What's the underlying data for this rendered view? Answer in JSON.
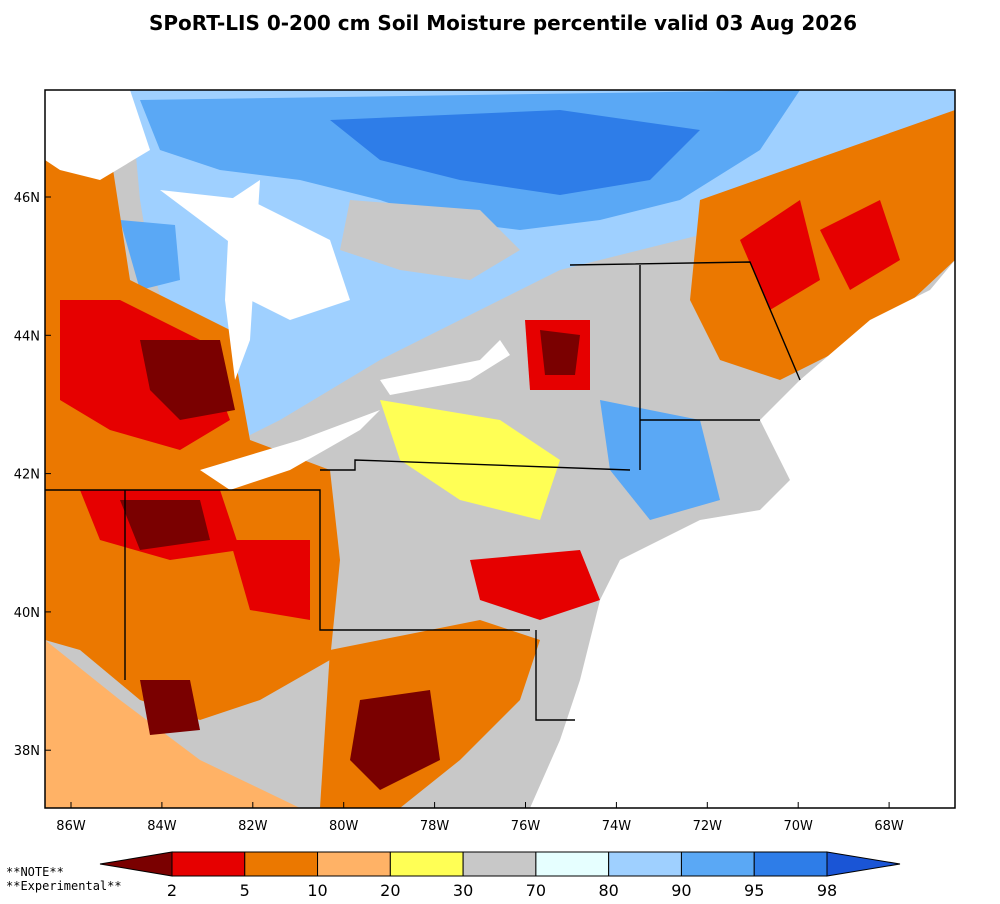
{
  "title": "SPoRT-LIS 0-200 cm Soil Moisture percentile valid 03 Aug 2026",
  "map": {
    "lat_labels": [
      "46N",
      "44N",
      "42N",
      "40N",
      "38N"
    ],
    "lon_labels": [
      "86W",
      "84W",
      "82W",
      "80W",
      "78W",
      "76W",
      "74W",
      "72W",
      "70W",
      "68W"
    ]
  },
  "colorbar": {
    "bounds": [
      2,
      5,
      10,
      20,
      30,
      70,
      80,
      90,
      95,
      98
    ],
    "colors": [
      "#7a0000",
      "#e60000",
      "#eb7800",
      "#ffb266",
      "#ffff55",
      "#c8c8c8",
      "#e6ffff",
      "#9fd0ff",
      "#5aa8f5",
      "#2e7de8",
      "#1a55d6"
    ]
  },
  "notes": [
    "**NOTE**",
    "**Experimental**"
  ]
}
